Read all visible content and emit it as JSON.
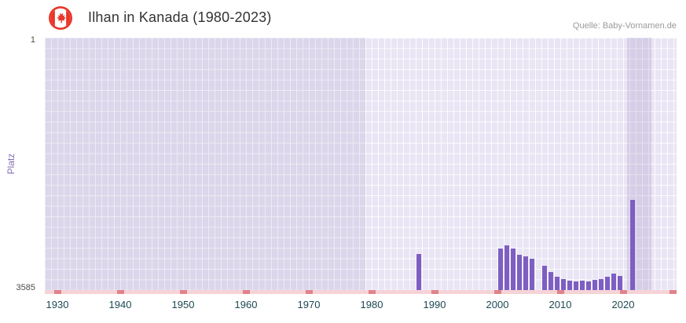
{
  "header": {
    "title": "Ilhan in Kanada (1980-2023)",
    "source": "Quelle: Baby-Vornamen.de"
  },
  "chart_data": {
    "type": "bar",
    "title": "Ilhan in Kanada (1980-2023)",
    "source": "Quelle: Baby-Vornamen.de",
    "ylabel": "Platz",
    "y_axis": {
      "min": 1,
      "max": 3585,
      "inverted": true,
      "top_label": "1",
      "bottom_label": "3585"
    },
    "x_range": [
      1928,
      2028.5
    ],
    "x_ticks": [
      1930,
      1940,
      1950,
      1960,
      1970,
      1980,
      1990,
      2000,
      2010,
      2020
    ],
    "grid": true,
    "legend": "none",
    "plot_bg": "#e9e5f4",
    "grid_color": "#ffffff",
    "bar_color": "#7e5ec2",
    "axis_line_color": "#f5d3d6",
    "decade_marker_color": "#e0838b",
    "bands": [
      {
        "from": 1928,
        "to": 1979,
        "alpha": 0.1
      },
      {
        "from": 2020.6,
        "to": 2024.5,
        "alpha": 0.16
      }
    ],
    "points": [
      {
        "year": 1987,
        "rank": 3070
      },
      {
        "year": 2000,
        "rank": 2990
      },
      {
        "year": 2001,
        "rank": 2945
      },
      {
        "year": 2002,
        "rank": 2995
      },
      {
        "year": 2003,
        "rank": 3080
      },
      {
        "year": 2004,
        "rank": 3110
      },
      {
        "year": 2005,
        "rank": 3140
      },
      {
        "year": 2007,
        "rank": 3240
      },
      {
        "year": 2008,
        "rank": 3330
      },
      {
        "year": 2009,
        "rank": 3400
      },
      {
        "year": 2010,
        "rank": 3430
      },
      {
        "year": 2011,
        "rank": 3450
      },
      {
        "year": 2012,
        "rank": 3460
      },
      {
        "year": 2013,
        "rank": 3450
      },
      {
        "year": 2014,
        "rank": 3460
      },
      {
        "year": 2015,
        "rank": 3440
      },
      {
        "year": 2016,
        "rank": 3430
      },
      {
        "year": 2017,
        "rank": 3400
      },
      {
        "year": 2018,
        "rank": 3350
      },
      {
        "year": 2019,
        "rank": 3390
      },
      {
        "year": 2021,
        "rank": 2300
      }
    ]
  }
}
